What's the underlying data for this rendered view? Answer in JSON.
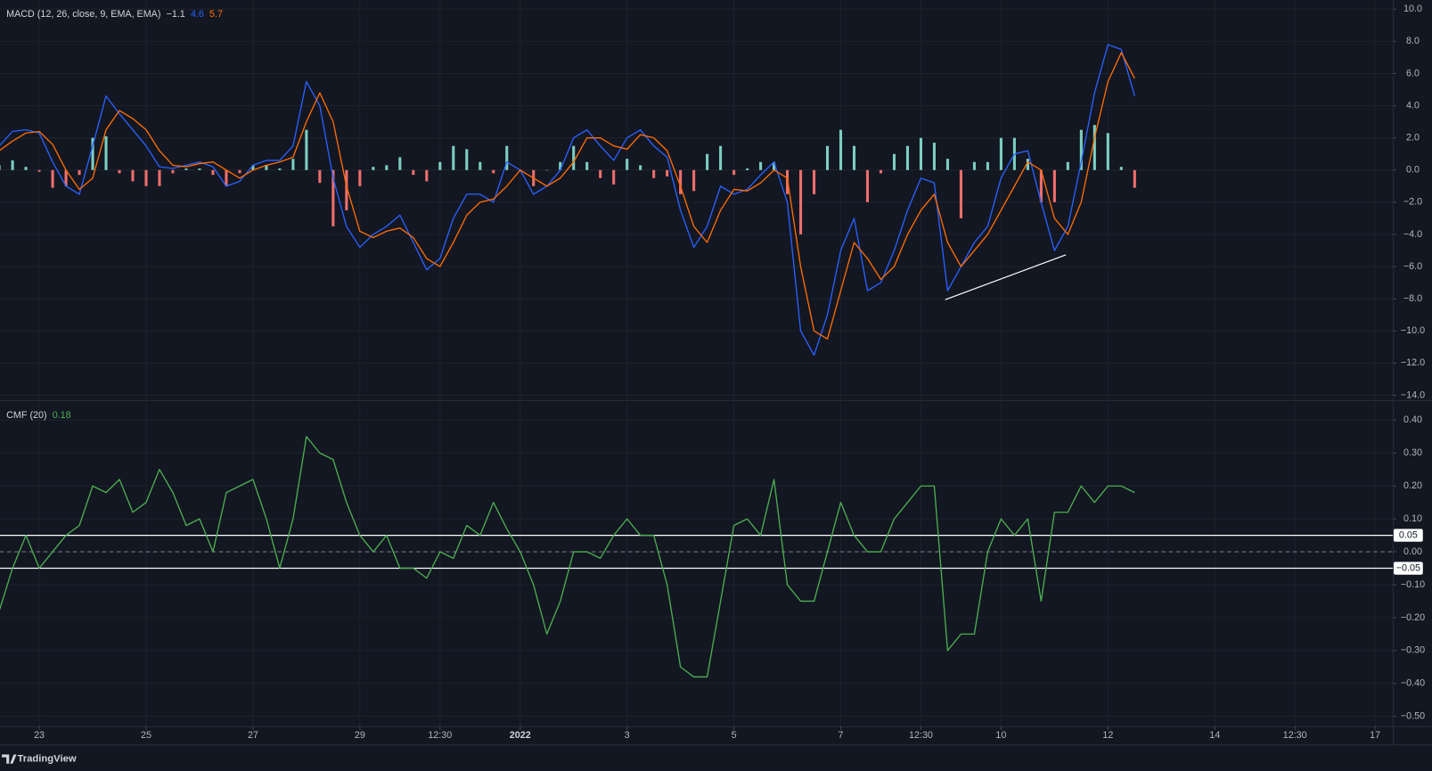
{
  "branding": "TradingView",
  "chart_data": [
    {
      "type": "line",
      "title": "MACD (12, 26, close, 9, EMA, EMA)",
      "legend_values": [
        {
          "value": -1.1,
          "label": "−1.1"
        },
        4.6,
        5.7
      ],
      "xlim": [
        -0.735,
        25.33
      ],
      "x": [
        -0.75,
        -0.5,
        -0.25,
        0,
        0.25,
        0.5,
        0.75,
        1,
        1.25,
        1.5,
        1.75,
        2,
        2.25,
        2.5,
        2.75,
        3,
        3.25,
        3.5,
        3.75,
        4,
        4.25,
        4.5,
        4.75,
        5,
        5.25,
        5.5,
        5.75,
        6,
        6.25,
        6.5,
        6.75,
        7,
        7.25,
        7.5,
        7.75,
        8,
        8.25,
        8.5,
        8.75,
        9,
        9.25,
        9.5,
        9.75,
        10,
        10.25,
        10.5,
        10.75,
        11,
        11.25,
        11.5,
        11.75,
        12,
        12.25,
        12.5,
        12.75,
        13,
        13.25,
        13.5,
        13.75,
        14,
        14.25,
        14.5,
        14.75,
        15,
        15.25,
        15.5,
        15.75,
        16,
        16.25,
        16.5,
        16.75,
        17,
        17.25,
        17.5,
        17.75,
        18,
        18.25,
        18.5,
        18.75,
        19,
        19.25,
        19.5,
        19.75,
        20,
        20.25,
        20.5
      ],
      "ylim": [
        -14.3,
        10.57
      ],
      "yticks": [
        {
          "value": 10,
          "label": "10.0"
        },
        {
          "value": 8,
          "label": "8.0"
        },
        {
          "value": 6,
          "label": "6.0"
        },
        {
          "value": 4,
          "label": "4.0"
        },
        {
          "value": 2,
          "label": "2.0"
        },
        {
          "value": 0,
          "label": "0.0"
        },
        {
          "value": -2,
          "label": "−2.0"
        },
        {
          "value": -4,
          "label": "−4.0"
        },
        {
          "value": -6,
          "label": "−6.0"
        },
        {
          "value": -8,
          "label": "−8.0"
        },
        {
          "value": -10,
          "label": "−10.0"
        },
        {
          "value": -12,
          "label": "−12.0"
        },
        {
          "value": -14,
          "label": "−14.0"
        }
      ],
      "series": [
        {
          "style": "histogram",
          "color": "#7ccfc1",
          "negative_color": "#ef6f6c",
          "legend_color": "#d1d4dc",
          "values": [
            0.3,
            0.6,
            0.2,
            -0.1,
            -1.1,
            -1.0,
            -0.3,
            2.0,
            2.1,
            -0.2,
            -0.7,
            -1.0,
            -1.0,
            -0.2,
            0.1,
            0.1,
            -0.3,
            -1.0,
            -0.2,
            0.3,
            0.3,
            0.1,
            0.7,
            2.5,
            -0.8,
            -3.5,
            -2.5,
            -1.0,
            0.2,
            0.3,
            0.8,
            -0.3,
            -0.7,
            0.5,
            1.5,
            1.3,
            0.5,
            -0.2,
            1.5,
            0,
            -1.0,
            0,
            0.5,
            1.5,
            0.5,
            -0.5,
            -0.9,
            0.7,
            0.3,
            -0.5,
            -0.4,
            -1.5,
            -1.3,
            1.0,
            1.5,
            -0.3,
            0.1,
            0.5,
            0.5,
            -1.5,
            -4,
            -1.5,
            1.5,
            2.5,
            1.5,
            -2,
            -0.2,
            1.0,
            1.5,
            2,
            1.7,
            0.7,
            -3,
            0.5,
            0.5,
            2,
            2,
            0.7,
            -2,
            -2,
            0.5,
            2.5,
            2.8,
            2.3,
            0.2,
            -1.1
          ]
        },
        {
          "style": "line",
          "color": "#2962ff",
          "values": [
            1.5,
            2.4,
            2.5,
            2.3,
            0.5,
            -1.0,
            -1.5,
            1.5,
            4.6,
            3.5,
            2.5,
            1.5,
            0.2,
            0.1,
            0.3,
            0.5,
            0.2,
            -1.0,
            -0.7,
            0.3,
            0.6,
            0.6,
            1.5,
            5.5,
            4,
            -0.5,
            -3.5,
            -4.8,
            -4.0,
            -3.5,
            -2.8,
            -4.5,
            -6.2,
            -5.5,
            -3,
            -1.5,
            -1.5,
            -2,
            0.5,
            0,
            -1.5,
            -1,
            0,
            2,
            2.5,
            1.5,
            0.6,
            2,
            2.5,
            1.5,
            0.8,
            -2.5,
            -4.8,
            -3.5,
            -1,
            -1.5,
            -1.2,
            -0.3,
            0.5,
            -2,
            -10,
            -11.5,
            -9,
            -5,
            -3,
            -7.5,
            -7,
            -5,
            -2.5,
            -0.5,
            -0.8,
            -7.5,
            -6,
            -4.5,
            -3.5,
            -0.5,
            1,
            1.2,
            -2,
            -5,
            -3.5,
            0.5,
            4.8,
            7.8,
            7.5,
            4.6
          ]
        },
        {
          "style": "line",
          "color": "#ff6d00",
          "values": [
            1.2,
            1.8,
            2.3,
            2.4,
            1.6,
            0,
            -1.2,
            -0.5,
            2.5,
            3.7,
            3.2,
            2.5,
            1.2,
            0.3,
            0.2,
            0.4,
            0.5,
            0,
            -0.5,
            0,
            0.3,
            0.5,
            0.8,
            3,
            4.8,
            3,
            -1.0,
            -3.8,
            -4.2,
            -3.8,
            -3.6,
            -4.2,
            -5.5,
            -6,
            -4.5,
            -2.8,
            -2,
            -1.8,
            -1.0,
            0,
            -0.5,
            -1,
            -0.5,
            0.5,
            2,
            2,
            1.5,
            1.3,
            2.2,
            2,
            1.2,
            -1,
            -3.5,
            -4.5,
            -2.5,
            -1.2,
            -1.3,
            -0.8,
            0,
            -0.5,
            -6,
            -10,
            -10.5,
            -7.5,
            -4.5,
            -5.5,
            -6.8,
            -6,
            -4,
            -2.5,
            -1.5,
            -4.5,
            -6,
            -5,
            -4,
            -2.5,
            -1,
            0.5,
            0,
            -3,
            -4,
            -2,
            2,
            5.5,
            7.3,
            5.7
          ]
        }
      ]
    },
    {
      "type": "line",
      "title": "CMF (20)",
      "legend_values": [
        0.18
      ],
      "xlim": [
        -0.735,
        25.33
      ],
      "x": [
        -0.75,
        -0.5,
        -0.25,
        0,
        0.25,
        0.5,
        0.75,
        1,
        1.25,
        1.5,
        1.75,
        2,
        2.25,
        2.5,
        2.75,
        3,
        3.25,
        3.5,
        3.75,
        4,
        4.25,
        4.5,
        4.75,
        5,
        5.25,
        5.5,
        5.75,
        6,
        6.25,
        6.5,
        6.75,
        7,
        7.25,
        7.5,
        7.75,
        8,
        8.25,
        8.5,
        8.75,
        9,
        9.25,
        9.5,
        9.75,
        10,
        10.25,
        10.5,
        10.75,
        11,
        11.25,
        11.5,
        11.75,
        12,
        12.25,
        12.5,
        12.75,
        13,
        13.25,
        13.5,
        13.75,
        14,
        14.25,
        14.5,
        14.75,
        15,
        15.25,
        15.5,
        15.75,
        16,
        16.25,
        16.5,
        16.75,
        17,
        17.25,
        17.5,
        17.75,
        18,
        18.25,
        18.5,
        18.75,
        19,
        19.25,
        19.5,
        19.75,
        20,
        20.25,
        20.5
      ],
      "xticks": [
        {
          "value": 0,
          "label": "23"
        },
        {
          "value": 2,
          "label": "25"
        },
        {
          "value": 4,
          "label": "27"
        },
        {
          "value": 6,
          "label": "29"
        },
        {
          "value": 7.5,
          "label": "12:30"
        },
        {
          "value": 9,
          "label": "2022"
        },
        {
          "value": 11,
          "label": "3"
        },
        {
          "value": 13,
          "label": "5"
        },
        {
          "value": 15,
          "label": "7"
        },
        {
          "value": 16.5,
          "label": "12:30"
        },
        {
          "value": 18,
          "label": "10"
        },
        {
          "value": 20,
          "label": "12"
        },
        {
          "value": 22,
          "label": "14"
        },
        {
          "value": 23.5,
          "label": "12:30"
        },
        {
          "value": 25,
          "label": "17"
        }
      ],
      "ylim": [
        -0.53,
        0.458
      ],
      "yticks": [
        {
          "value": 0.4,
          "label": "0.40"
        },
        {
          "value": 0.3,
          "label": "0.30"
        },
        {
          "value": 0.2,
          "label": "0.20"
        },
        {
          "value": 0.1,
          "label": "0.10"
        },
        {
          "value": 0,
          "label": "0.00"
        },
        {
          "value": -0.1,
          "label": "−0.10"
        },
        {
          "value": -0.2,
          "label": "−0.20"
        },
        {
          "value": -0.3,
          "label": "−0.30"
        },
        {
          "value": -0.4,
          "label": "−0.40"
        },
        {
          "value": -0.5,
          "label": "−0.50"
        }
      ],
      "bands": [
        {
          "value": 0.05,
          "label": "0.05"
        },
        {
          "value": -0.05,
          "label": "−0.05"
        }
      ],
      "dashed_line": 0,
      "series": [
        {
          "style": "line",
          "color": "#4caf50",
          "values": [
            -0.18,
            -0.05,
            0.05,
            -0.05,
            0,
            0.05,
            0.08,
            0.2,
            0.18,
            0.22,
            0.12,
            0.15,
            0.25,
            0.18,
            0.08,
            0.1,
            0,
            0.18,
            0.2,
            0.22,
            0.1,
            -0.05,
            0.1,
            0.35,
            0.3,
            0.28,
            0.15,
            0.05,
            0,
            0.05,
            -0.05,
            -0.05,
            -0.08,
            0,
            -0.02,
            0.08,
            0.05,
            0.15,
            0.07,
            0,
            -0.1,
            -0.25,
            -0.15,
            0,
            0,
            -0.02,
            0.05,
            0.1,
            0.05,
            0.05,
            -0.1,
            -0.35,
            -0.38,
            -0.38,
            -0.15,
            0.08,
            0.1,
            0.05,
            0.22,
            -0.1,
            -0.15,
            -0.15,
            0,
            0.15,
            0.05,
            0,
            0,
            0.1,
            0.15,
            0.2,
            0.2,
            -0.3,
            -0.25,
            -0.25,
            0,
            0.1,
            0.05,
            0.1,
            -0.15,
            0.12,
            0.12,
            0.2,
            0.15,
            0.2,
            0.2,
            0.18
          ]
        }
      ]
    }
  ]
}
